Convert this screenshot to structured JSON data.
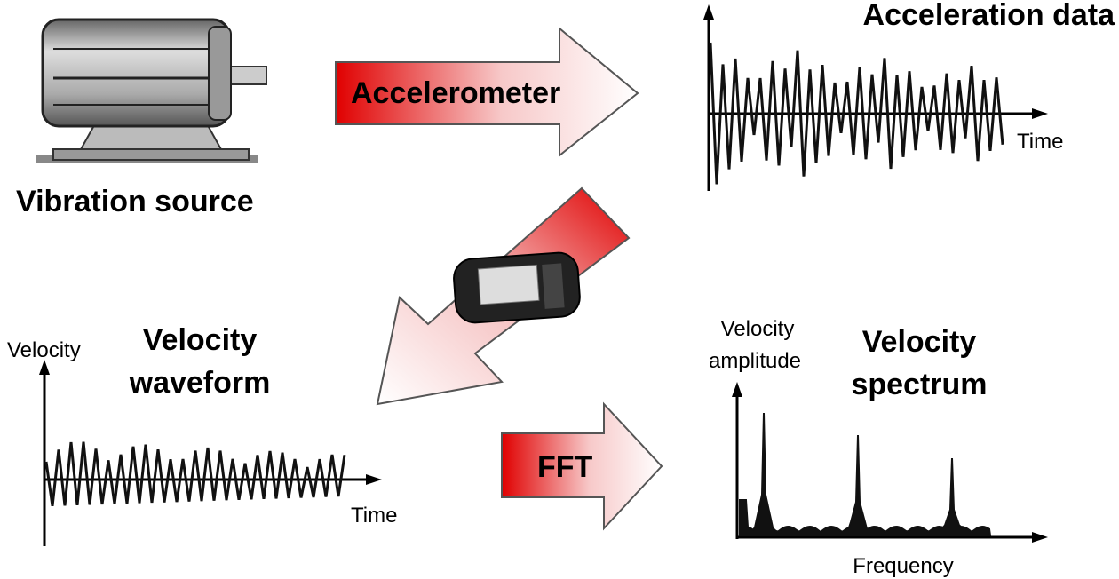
{
  "source": {
    "label": "Vibration source"
  },
  "sensor_arrow": {
    "label": "Accelerometer"
  },
  "acceleration": {
    "title": "Acceleration data",
    "x_label": "Time"
  },
  "velocity_waveform": {
    "title": [
      "Velocity",
      "waveform"
    ],
    "y_label": "Velocity",
    "x_label": "Time"
  },
  "fft_arrow": {
    "label": "FFT"
  },
  "velocity_spectrum": {
    "title": [
      "Velocity",
      "spectrum"
    ],
    "y_label": [
      "Velocity",
      "amplitude"
    ],
    "x_label": "Frequency"
  }
}
